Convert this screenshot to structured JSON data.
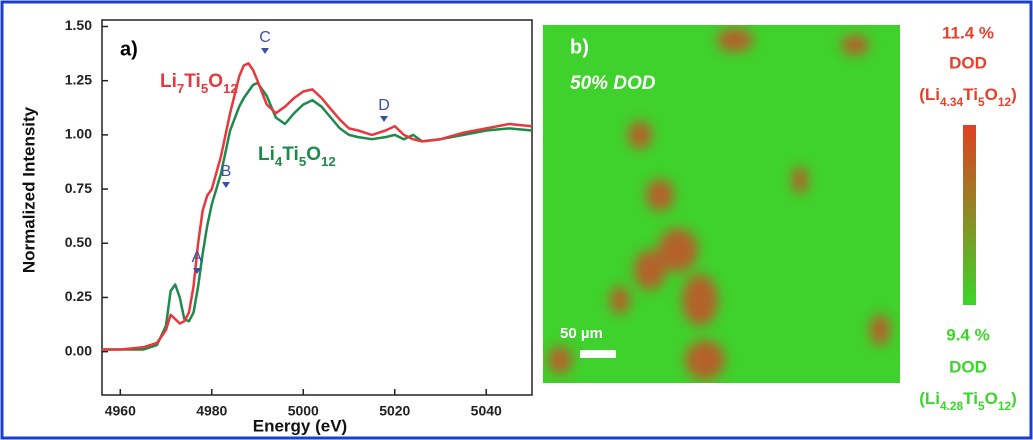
{
  "chart_data": {
    "type": "line",
    "panel_label": "a)",
    "x_label": "Energy (eV)",
    "y_label": "Normalized Intensity",
    "x": [
      4956,
      4960,
      4965,
      4968,
      4970,
      4971,
      4972,
      4973,
      4974,
      4975,
      4976,
      4977,
      4978,
      4979,
      4980,
      4982,
      4984,
      4986,
      4987,
      4988,
      4989,
      4990,
      4992,
      4994,
      4996,
      4998,
      5000,
      5002,
      5004,
      5006,
      5008,
      5010,
      5012,
      5015,
      5018,
      5020,
      5022,
      5024,
      5026,
      5030,
      5035,
      5040,
      5045,
      5050
    ],
    "series": [
      {
        "name": "Li7Ti5O12",
        "color": "#e8383d",
        "values": [
          0.01,
          0.01,
          0.02,
          0.04,
          0.1,
          0.17,
          0.15,
          0.13,
          0.14,
          0.18,
          0.3,
          0.5,
          0.65,
          0.72,
          0.75,
          0.9,
          1.1,
          1.27,
          1.32,
          1.33,
          1.3,
          1.25,
          1.14,
          1.1,
          1.13,
          1.17,
          1.2,
          1.21,
          1.17,
          1.12,
          1.07,
          1.03,
          1.02,
          1.0,
          1.02,
          1.04,
          1.0,
          0.98,
          0.97,
          0.98,
          1.01,
          1.03,
          1.05,
          1.04
        ]
      },
      {
        "name": "Li4Ti5O12",
        "color": "#1e8a4c",
        "values": [
          0.01,
          0.01,
          0.01,
          0.03,
          0.12,
          0.28,
          0.31,
          0.25,
          0.15,
          0.14,
          0.18,
          0.3,
          0.45,
          0.58,
          0.68,
          0.82,
          1.02,
          1.13,
          1.17,
          1.2,
          1.23,
          1.24,
          1.18,
          1.08,
          1.05,
          1.1,
          1.14,
          1.16,
          1.13,
          1.08,
          1.03,
          1.0,
          0.99,
          0.98,
          0.99,
          1.0,
          0.98,
          1.0,
          0.97,
          0.98,
          1.0,
          1.02,
          1.03,
          1.02
        ]
      }
    ],
    "annotations": [
      "A",
      "B",
      "C",
      "D"
    ],
    "annotation_color": "#3a4fa8",
    "xlim": [
      4956,
      5050
    ],
    "xticks": [
      4960,
      4980,
      5000,
      5020,
      5040
    ],
    "ylim": [
      -0.2,
      1.53
    ],
    "yticks": [
      {
        "value": 0,
        "label": "0.00"
      },
      0.25,
      {
        "value": 0.5,
        "label": "0.50"
      },
      0.75,
      {
        "value": 1,
        "label": "1.00"
      },
      1.25,
      {
        "value": 1.5,
        "label": "1.50"
      }
    ],
    "grid": false
  },
  "map_panel": {
    "panel_label": "b)",
    "state": "50% DOD",
    "scale_bar": "50 µm",
    "colorbar": {
      "max_value": "11.4 %",
      "max_unit": "DOD",
      "max_formula": "(Li4.34Ti5O12)",
      "min_value": "9.4 %",
      "min_unit": "DOD",
      "min_formula": "(Li4.28Ti5O12)"
    }
  }
}
